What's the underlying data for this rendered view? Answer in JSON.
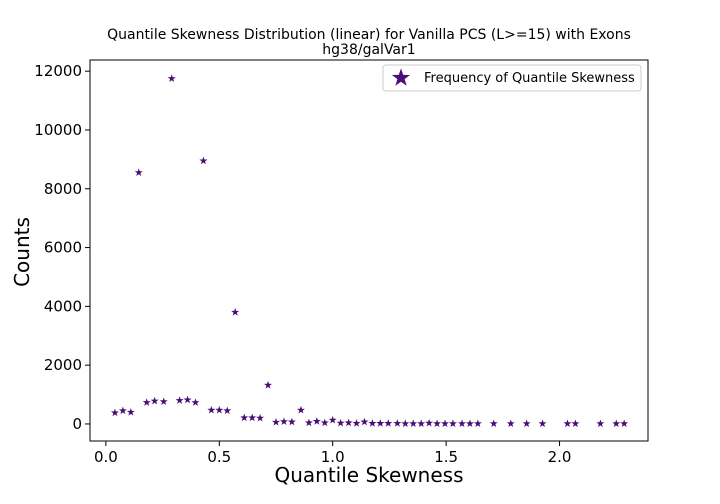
{
  "chart_data": {
    "type": "scatter",
    "title": "Quantile Skewness Distribution (linear) for Vanilla PCS (L>=15) with Exons",
    "subtitle": "hg38/galVar1",
    "xlabel": "Quantile Skewness",
    "ylabel": "Counts",
    "xlim": [
      -0.07,
      2.39
    ],
    "ylim": [
      -580,
      12380
    ],
    "xticks": [
      0.0,
      0.5,
      1.0,
      1.5,
      2.0
    ],
    "xtick_labels": [
      "0.0",
      "0.5",
      "1.0",
      "1.5",
      "2.0"
    ],
    "yticks": [
      0,
      2000,
      4000,
      6000,
      8000,
      10000,
      12000
    ],
    "ytick_labels": [
      "0",
      "2000",
      "4000",
      "6000",
      "8000",
      "10000",
      "12000"
    ],
    "marker": "star",
    "color": "#4b0e78",
    "grid": false,
    "legend_position": "top-right",
    "series": [
      {
        "name": "Frequency of Quantile Skewness",
        "x": [
          0.04,
          0.075,
          0.11,
          0.145,
          0.18,
          0.215,
          0.255,
          0.29,
          0.325,
          0.36,
          0.395,
          0.43,
          0.465,
          0.5,
          0.535,
          0.57,
          0.61,
          0.645,
          0.68,
          0.715,
          0.75,
          0.785,
          0.82,
          0.86,
          0.895,
          0.93,
          0.965,
          1.0,
          1.035,
          1.07,
          1.105,
          1.14,
          1.175,
          1.21,
          1.245,
          1.285,
          1.32,
          1.355,
          1.39,
          1.425,
          1.46,
          1.495,
          1.53,
          1.57,
          1.605,
          1.64,
          1.71,
          1.785,
          1.855,
          1.925,
          2.035,
          2.07,
          2.18,
          2.25,
          2.285
        ],
        "y": [
          380,
          450,
          400,
          8550,
          730,
          780,
          760,
          11750,
          800,
          820,
          730,
          8950,
          470,
          470,
          450,
          3800,
          210,
          210,
          200,
          1320,
          60,
          80,
          70,
          470,
          40,
          90,
          40,
          130,
          30,
          40,
          20,
          70,
          20,
          20,
          20,
          20,
          10,
          10,
          10,
          30,
          10,
          10,
          10,
          10,
          10,
          10,
          10,
          10,
          10,
          10,
          10,
          10,
          10,
          10,
          10
        ]
      }
    ]
  }
}
